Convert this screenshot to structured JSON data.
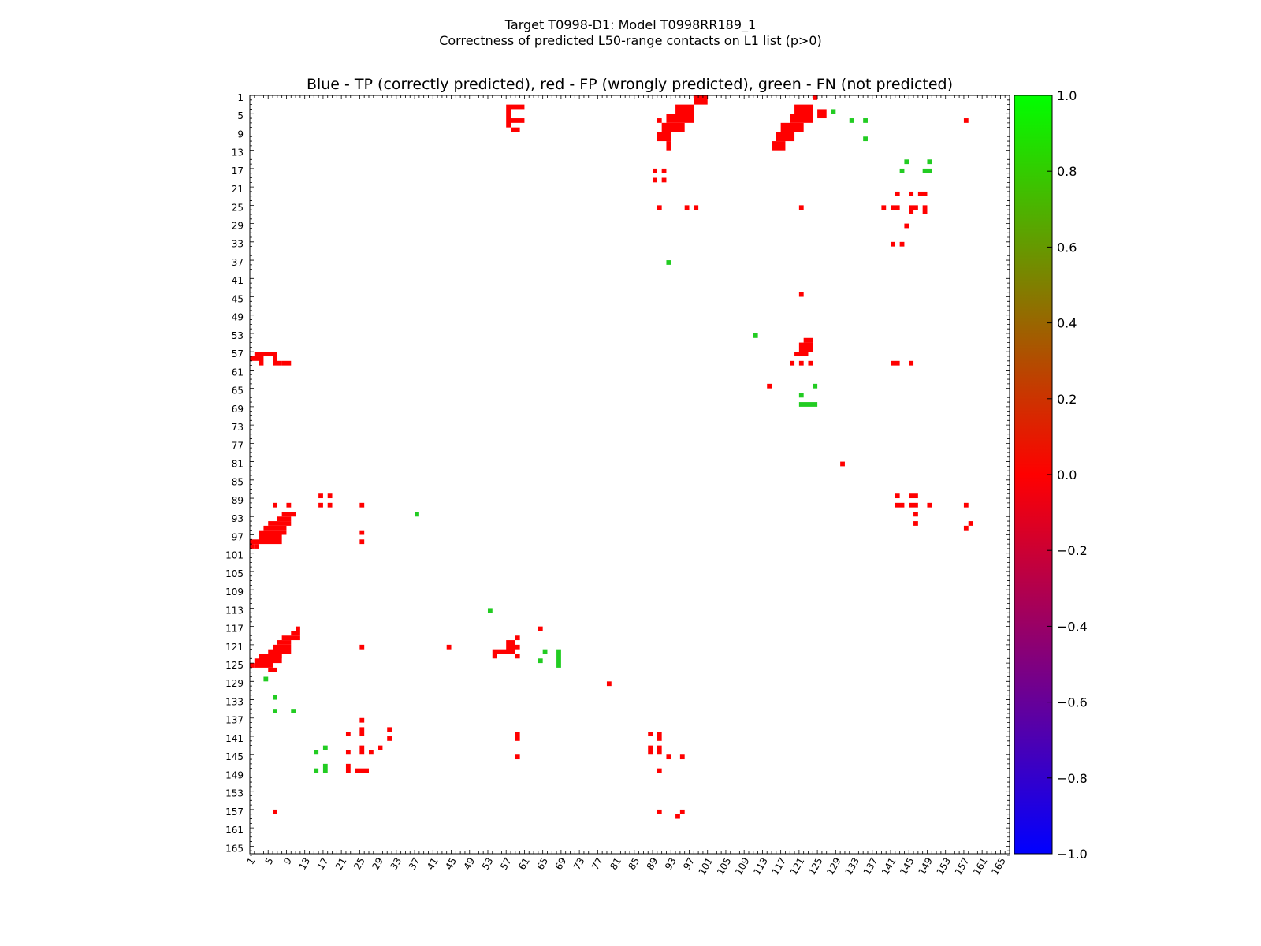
{
  "figure": {
    "title_line1": "Target T0998-D1: Model T0998RR189_1",
    "title_line2": "Correctness of predicted L50-range contacts on L1 list (p>0)"
  },
  "colors": {
    "tp": "#0000ff",
    "fp": "#ff0000",
    "fn": "#22cc22"
  },
  "chart_data": {
    "type": "heatmap",
    "title": "Blue - TP (correctly predicted), red - FP (wrongly predicted), green - FN (not predicted)",
    "xlabel": "",
    "ylabel": "",
    "xlim": [
      1,
      166
    ],
    "ylim": [
      1,
      166
    ],
    "y_inverted": true,
    "tick_labels": [
      "1",
      "5",
      "9",
      "13",
      "17",
      "21",
      "25",
      "29",
      "33",
      "37",
      "41",
      "45",
      "49",
      "53",
      "57",
      "61",
      "65",
      "69",
      "73",
      "77",
      "81",
      "85",
      "89",
      "93",
      "97",
      "101",
      "105",
      "109",
      "113",
      "117",
      "121",
      "125",
      "129",
      "133",
      "137",
      "141",
      "145",
      "149",
      "153",
      "157",
      "161",
      "165"
    ],
    "colorbar": {
      "range": [
        -1.0,
        1.0
      ],
      "ticks": [
        "1.0",
        "0.8",
        "0.6",
        "0.4",
        "0.2",
        "0.0",
        "−0.2",
        "−0.4",
        "−0.6",
        "−0.8",
        "−1.0"
      ],
      "colormap": [
        "#0000ff",
        "#ff0000",
        "#00ff00"
      ]
    },
    "fp_blocks": [
      [
        57,
        3,
        58,
        8
      ],
      [
        58,
        3,
        61,
        4
      ],
      [
        58,
        6,
        61,
        7
      ],
      [
        58,
        8,
        60,
        9
      ],
      [
        98,
        1,
        101,
        3
      ],
      [
        94,
        3,
        98,
        5
      ],
      [
        92,
        5,
        98,
        7
      ],
      [
        91,
        7,
        96,
        9
      ],
      [
        90,
        9,
        93,
        11
      ],
      [
        92,
        11,
        93,
        13
      ],
      [
        90,
        6,
        91,
        7
      ],
      [
        124,
        1,
        125,
        2
      ],
      [
        120,
        3,
        124,
        5
      ],
      [
        119,
        5,
        124,
        7
      ],
      [
        117,
        7,
        122,
        9
      ],
      [
        116,
        9,
        120,
        11
      ],
      [
        115,
        11,
        118,
        13
      ],
      [
        125,
        4,
        127,
        6
      ],
      [
        89,
        17,
        90,
        18
      ],
      [
        91,
        17,
        92,
        18
      ],
      [
        89,
        19,
        90,
        20
      ],
      [
        91,
        19,
        92,
        20
      ],
      [
        90,
        25,
        91,
        26
      ],
      [
        96,
        25,
        97,
        26
      ],
      [
        98,
        25,
        99,
        26
      ],
      [
        121,
        25,
        122,
        26
      ],
      [
        142,
        22,
        143,
        23
      ],
      [
        145,
        22,
        146,
        23
      ],
      [
        147,
        22,
        149,
        23
      ],
      [
        139,
        25,
        140,
        26
      ],
      [
        141,
        25,
        143,
        26
      ],
      [
        145,
        25,
        147,
        26
      ],
      [
        148,
        25,
        149,
        27
      ],
      [
        145,
        26,
        146,
        27
      ],
      [
        144,
        29,
        145,
        30
      ],
      [
        141,
        33,
        142,
        34
      ],
      [
        143,
        33,
        144,
        34
      ],
      [
        157,
        6,
        158,
        7
      ],
      [
        121,
        44,
        122,
        45
      ],
      [
        122,
        54,
        124,
        55
      ],
      [
        121,
        55,
        124,
        57
      ],
      [
        120,
        57,
        123,
        58
      ],
      [
        119,
        59,
        120,
        60
      ],
      [
        121,
        59,
        122,
        60
      ],
      [
        123,
        59,
        124,
        60
      ],
      [
        141,
        59,
        143,
        60
      ],
      [
        145,
        59,
        146,
        60
      ],
      [
        114,
        64,
        115,
        65
      ],
      [
        130,
        81,
        131,
        82
      ],
      [
        2,
        57,
        7,
        58
      ],
      [
        6,
        57,
        7,
        60
      ],
      [
        1,
        58,
        3,
        59
      ],
      [
        3,
        58,
        4,
        60
      ],
      [
        7,
        59,
        8,
        60
      ],
      [
        8,
        59,
        10,
        60
      ],
      [
        16,
        88,
        17,
        89
      ],
      [
        18,
        88,
        19,
        89
      ],
      [
        16,
        90,
        17,
        91
      ],
      [
        18,
        90,
        19,
        91
      ],
      [
        6,
        90,
        7,
        91
      ],
      [
        25,
        90,
        26,
        91
      ],
      [
        25,
        96,
        26,
        97
      ],
      [
        25,
        98,
        26,
        99
      ],
      [
        142,
        88,
        143,
        89
      ],
      [
        145,
        88,
        147,
        89
      ],
      [
        142,
        90,
        144,
        91
      ],
      [
        145,
        90,
        147,
        91
      ],
      [
        149,
        90,
        150,
        91
      ],
      [
        146,
        92,
        147,
        93
      ],
      [
        146,
        94,
        147,
        95
      ],
      [
        157,
        90,
        158,
        91
      ],
      [
        158,
        94,
        159,
        95
      ],
      [
        157,
        95,
        158,
        96
      ],
      [
        9,
        90,
        10,
        91
      ],
      [
        8,
        92,
        11,
        93
      ],
      [
        7,
        93,
        10,
        94
      ],
      [
        5,
        94,
        10,
        95
      ],
      [
        4,
        95,
        9,
        96
      ],
      [
        3,
        96,
        9,
        97
      ],
      [
        3,
        97,
        8,
        99
      ],
      [
        1,
        98,
        3,
        99
      ],
      [
        1,
        99,
        2,
        100
      ],
      [
        2,
        99,
        3,
        100
      ],
      [
        11,
        117,
        12,
        118
      ],
      [
        10,
        118,
        12,
        119
      ],
      [
        8,
        119,
        12,
        120
      ],
      [
        7,
        120,
        10,
        121
      ],
      [
        6,
        121,
        10,
        123
      ],
      [
        5,
        122,
        8,
        124
      ],
      [
        3,
        123,
        8,
        125
      ],
      [
        2,
        124,
        6,
        126
      ],
      [
        1,
        125,
        2,
        126
      ],
      [
        5,
        126,
        7,
        127
      ],
      [
        25,
        121,
        26,
        122
      ],
      [
        44,
        121,
        45,
        122
      ],
      [
        57,
        120,
        59,
        123
      ],
      [
        54,
        122,
        59,
        123
      ],
      [
        54,
        123,
        55,
        124
      ],
      [
        59,
        119,
        60,
        120
      ],
      [
        59,
        121,
        60,
        122
      ],
      [
        59,
        123,
        60,
        124
      ],
      [
        64,
        117,
        65,
        118
      ],
      [
        79,
        129,
        80,
        130
      ],
      [
        25,
        137,
        26,
        138
      ],
      [
        25,
        139,
        26,
        141
      ],
      [
        31,
        139,
        32,
        140
      ],
      [
        31,
        141,
        32,
        142
      ],
      [
        22,
        140,
        23,
        141
      ],
      [
        22,
        144,
        23,
        145
      ],
      [
        22,
        147,
        23,
        149
      ],
      [
        25,
        143,
        26,
        145
      ],
      [
        27,
        144,
        28,
        145
      ],
      [
        29,
        143,
        30,
        144
      ],
      [
        24,
        148,
        27,
        149
      ],
      [
        59,
        140,
        60,
        142
      ],
      [
        59,
        145,
        60,
        146
      ],
      [
        88,
        140,
        89,
        141
      ],
      [
        88,
        143,
        89,
        145
      ],
      [
        90,
        140,
        91,
        142
      ],
      [
        90,
        143,
        91,
        145
      ],
      [
        92,
        145,
        93,
        146
      ],
      [
        95,
        145,
        96,
        146
      ],
      [
        90,
        148,
        91,
        149
      ],
      [
        6,
        157,
        7,
        158
      ],
      [
        90,
        157,
        91,
        158
      ],
      [
        94,
        158,
        95,
        159
      ],
      [
        95,
        157,
        96,
        158
      ]
    ],
    "fn_blocks": [
      [
        128,
        4,
        129,
        5
      ],
      [
        132,
        6,
        133,
        7
      ],
      [
        135,
        6,
        136,
        7
      ],
      [
        135,
        10,
        136,
        11
      ],
      [
        144,
        15,
        145,
        16
      ],
      [
        149,
        15,
        150,
        16
      ],
      [
        143,
        17,
        144,
        18
      ],
      [
        148,
        17,
        150,
        18
      ],
      [
        92,
        37,
        93,
        38
      ],
      [
        111,
        53,
        112,
        54
      ],
      [
        124,
        64,
        125,
        65
      ],
      [
        121,
        66,
        122,
        67
      ],
      [
        121,
        68,
        125,
        69
      ],
      [
        37,
        92,
        38,
        93
      ],
      [
        53,
        113,
        54,
        114
      ],
      [
        65,
        122,
        66,
        123
      ],
      [
        64,
        124,
        65,
        125
      ],
      [
        68,
        122,
        69,
        126
      ],
      [
        4,
        128,
        5,
        129
      ],
      [
        6,
        132,
        7,
        133
      ],
      [
        6,
        135,
        7,
        136
      ],
      [
        10,
        135,
        11,
        136
      ],
      [
        15,
        144,
        16,
        145
      ],
      [
        17,
        143,
        18,
        144
      ],
      [
        15,
        148,
        16,
        149
      ],
      [
        17,
        147,
        18,
        149
      ]
    ],
    "tp_blocks": []
  }
}
